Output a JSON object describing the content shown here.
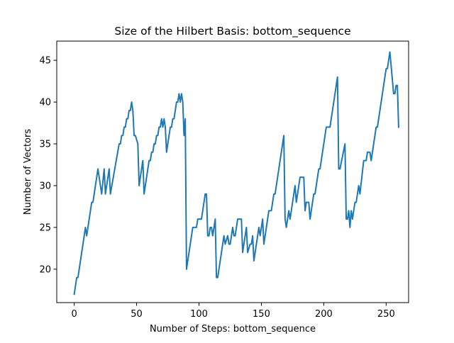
{
  "chart_data": {
    "type": "line",
    "title": "Size of the Hilbert Basis: bottom_sequence",
    "xlabel": "Number of Steps: bottom_sequence",
    "ylabel": "Number of Vectors",
    "xlim": [
      -14,
      268
    ],
    "ylim": [
      16.0,
      47.3
    ],
    "xticks": [
      0,
      50,
      100,
      150,
      200,
      250
    ],
    "yticks": [
      20,
      25,
      30,
      35,
      40,
      45
    ],
    "grid": false,
    "legend": "none",
    "series": [
      {
        "color": "#1f77b4",
        "points": [
          [
            0,
            17
          ],
          [
            2,
            19
          ],
          [
            3,
            19
          ],
          [
            9,
            25
          ],
          [
            10,
            24
          ],
          [
            14,
            28
          ],
          [
            15,
            28
          ],
          [
            19,
            32
          ],
          [
            22,
            29
          ],
          [
            24,
            32
          ],
          [
            25,
            29
          ],
          [
            28,
            32
          ],
          [
            29,
            29
          ],
          [
            36,
            35
          ],
          [
            37,
            35
          ],
          [
            38,
            36
          ],
          [
            39,
            36
          ],
          [
            40,
            37
          ],
          [
            41,
            37
          ],
          [
            42,
            38
          ],
          [
            43,
            38
          ],
          [
            44,
            39
          ],
          [
            45,
            39
          ],
          [
            46,
            40
          ],
          [
            47,
            39
          ],
          [
            48,
            36
          ],
          [
            49,
            36
          ],
          [
            51,
            35
          ],
          [
            52,
            30
          ],
          [
            55,
            33
          ],
          [
            56,
            29
          ],
          [
            60,
            33
          ],
          [
            61,
            33
          ],
          [
            62,
            34
          ],
          [
            63,
            34
          ],
          [
            64,
            35
          ],
          [
            65,
            35
          ],
          [
            66,
            36
          ],
          [
            67,
            36
          ],
          [
            68,
            37
          ],
          [
            69,
            37
          ],
          [
            70,
            38
          ],
          [
            71,
            37
          ],
          [
            72,
            38
          ],
          [
            73,
            37
          ],
          [
            74,
            34
          ],
          [
            77,
            37
          ],
          [
            78,
            37
          ],
          [
            79,
            38
          ],
          [
            80,
            38
          ],
          [
            81,
            39
          ],
          [
            82,
            40
          ],
          [
            83,
            40
          ],
          [
            84,
            41
          ],
          [
            85,
            40
          ],
          [
            86,
            41
          ],
          [
            87,
            40
          ],
          [
            88,
            36
          ],
          [
            89,
            38
          ],
          [
            90,
            20
          ],
          [
            95,
            25
          ],
          [
            98,
            25
          ],
          [
            99,
            26
          ],
          [
            102,
            26
          ],
          [
            105,
            29
          ],
          [
            106,
            29
          ],
          [
            107,
            24
          ],
          [
            108,
            24
          ],
          [
            109,
            25
          ],
          [
            110,
            25
          ],
          [
            111,
            24
          ],
          [
            113,
            26
          ],
          [
            114,
            19
          ],
          [
            115,
            19
          ],
          [
            120,
            24
          ],
          [
            121,
            23
          ],
          [
            123,
            24
          ],
          [
            124,
            23
          ],
          [
            125,
            23
          ],
          [
            126,
            24
          ],
          [
            127,
            25
          ],
          [
            128,
            24
          ],
          [
            129,
            24
          ],
          [
            130,
            25
          ],
          [
            131,
            26
          ],
          [
            134,
            26
          ],
          [
            135,
            22
          ],
          [
            138,
            25
          ],
          [
            139,
            22
          ],
          [
            141,
            23
          ],
          [
            142,
            23
          ],
          [
            143,
            24
          ],
          [
            144,
            21
          ],
          [
            148,
            25
          ],
          [
            149,
            24
          ],
          [
            151,
            26
          ],
          [
            152,
            23
          ],
          [
            156,
            27
          ],
          [
            158,
            27
          ],
          [
            159,
            28
          ],
          [
            160,
            29
          ],
          [
            161,
            29
          ],
          [
            168,
            36
          ],
          [
            169,
            26
          ],
          [
            170,
            25
          ],
          [
            172,
            27
          ],
          [
            173,
            26
          ],
          [
            177,
            30
          ],
          [
            178,
            28
          ],
          [
            180,
            30
          ],
          [
            181,
            31
          ],
          [
            184,
            31
          ],
          [
            185,
            27
          ],
          [
            186,
            28
          ],
          [
            188,
            28
          ],
          [
            189,
            26
          ],
          [
            192,
            29
          ],
          [
            193,
            29
          ],
          [
            194,
            30
          ],
          [
            196,
            32
          ],
          [
            197,
            32
          ],
          [
            202,
            37
          ],
          [
            205,
            37
          ],
          [
            211,
            43
          ],
          [
            212,
            32
          ],
          [
            213,
            32
          ],
          [
            217,
            35
          ],
          [
            218,
            26
          ],
          [
            219,
            26
          ],
          [
            220,
            27
          ],
          [
            221,
            25
          ],
          [
            222,
            27
          ],
          [
            223,
            26
          ],
          [
            225,
            28
          ],
          [
            226,
            28
          ],
          [
            228,
            30
          ],
          [
            229,
            29
          ],
          [
            232,
            33
          ],
          [
            234,
            33
          ],
          [
            235,
            34
          ],
          [
            237,
            34
          ],
          [
            238,
            33
          ],
          [
            242,
            37
          ],
          [
            243,
            37
          ],
          [
            250,
            44
          ],
          [
            251,
            44
          ],
          [
            253,
            46
          ],
          [
            256,
            41
          ],
          [
            257,
            41
          ],
          [
            258,
            42
          ],
          [
            259,
            42
          ],
          [
            260,
            37
          ]
        ]
      }
    ]
  }
}
